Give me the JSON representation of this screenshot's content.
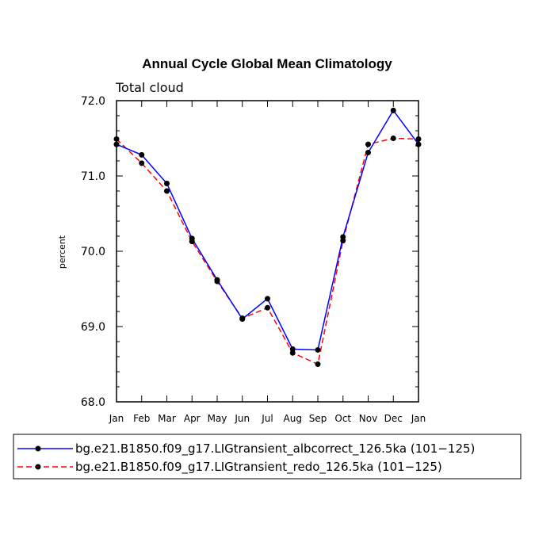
{
  "chart_data": {
    "type": "line",
    "title": "Annual Cycle Global Mean Climatology",
    "subtitle": "Total cloud",
    "xlabel": "",
    "ylabel": "percent",
    "ylim": [
      68.0,
      72.0
    ],
    "yticks": [
      "68.0",
      "69.0",
      "70.0",
      "71.0",
      "72.0"
    ],
    "categories": [
      "Jan",
      "Feb",
      "Mar",
      "Apr",
      "May",
      "Jun",
      "Jul",
      "Aug",
      "Sep",
      "Oct",
      "Nov",
      "Dec",
      "Jan"
    ],
    "series": [
      {
        "name": "bg.e21.B1850.f09_g17.LIGtransient_albcorrect_126.5ka (101−125)",
        "color": "#0000ff",
        "dash": "solid",
        "values": [
          71.42,
          71.28,
          70.9,
          70.17,
          69.62,
          69.1,
          69.37,
          68.7,
          68.69,
          70.19,
          71.31,
          71.87,
          71.42
        ]
      },
      {
        "name": "bg.e21.B1850.f09_g17.LIGtransient_redo_126.5ka (101−125)",
        "color": "#ff0000",
        "dash": "dashed",
        "values": [
          71.49,
          71.17,
          70.8,
          70.13,
          69.6,
          69.11,
          69.25,
          68.65,
          68.5,
          70.14,
          71.42,
          71.5,
          71.49
        ]
      }
    ],
    "legend_position": "bottom"
  }
}
